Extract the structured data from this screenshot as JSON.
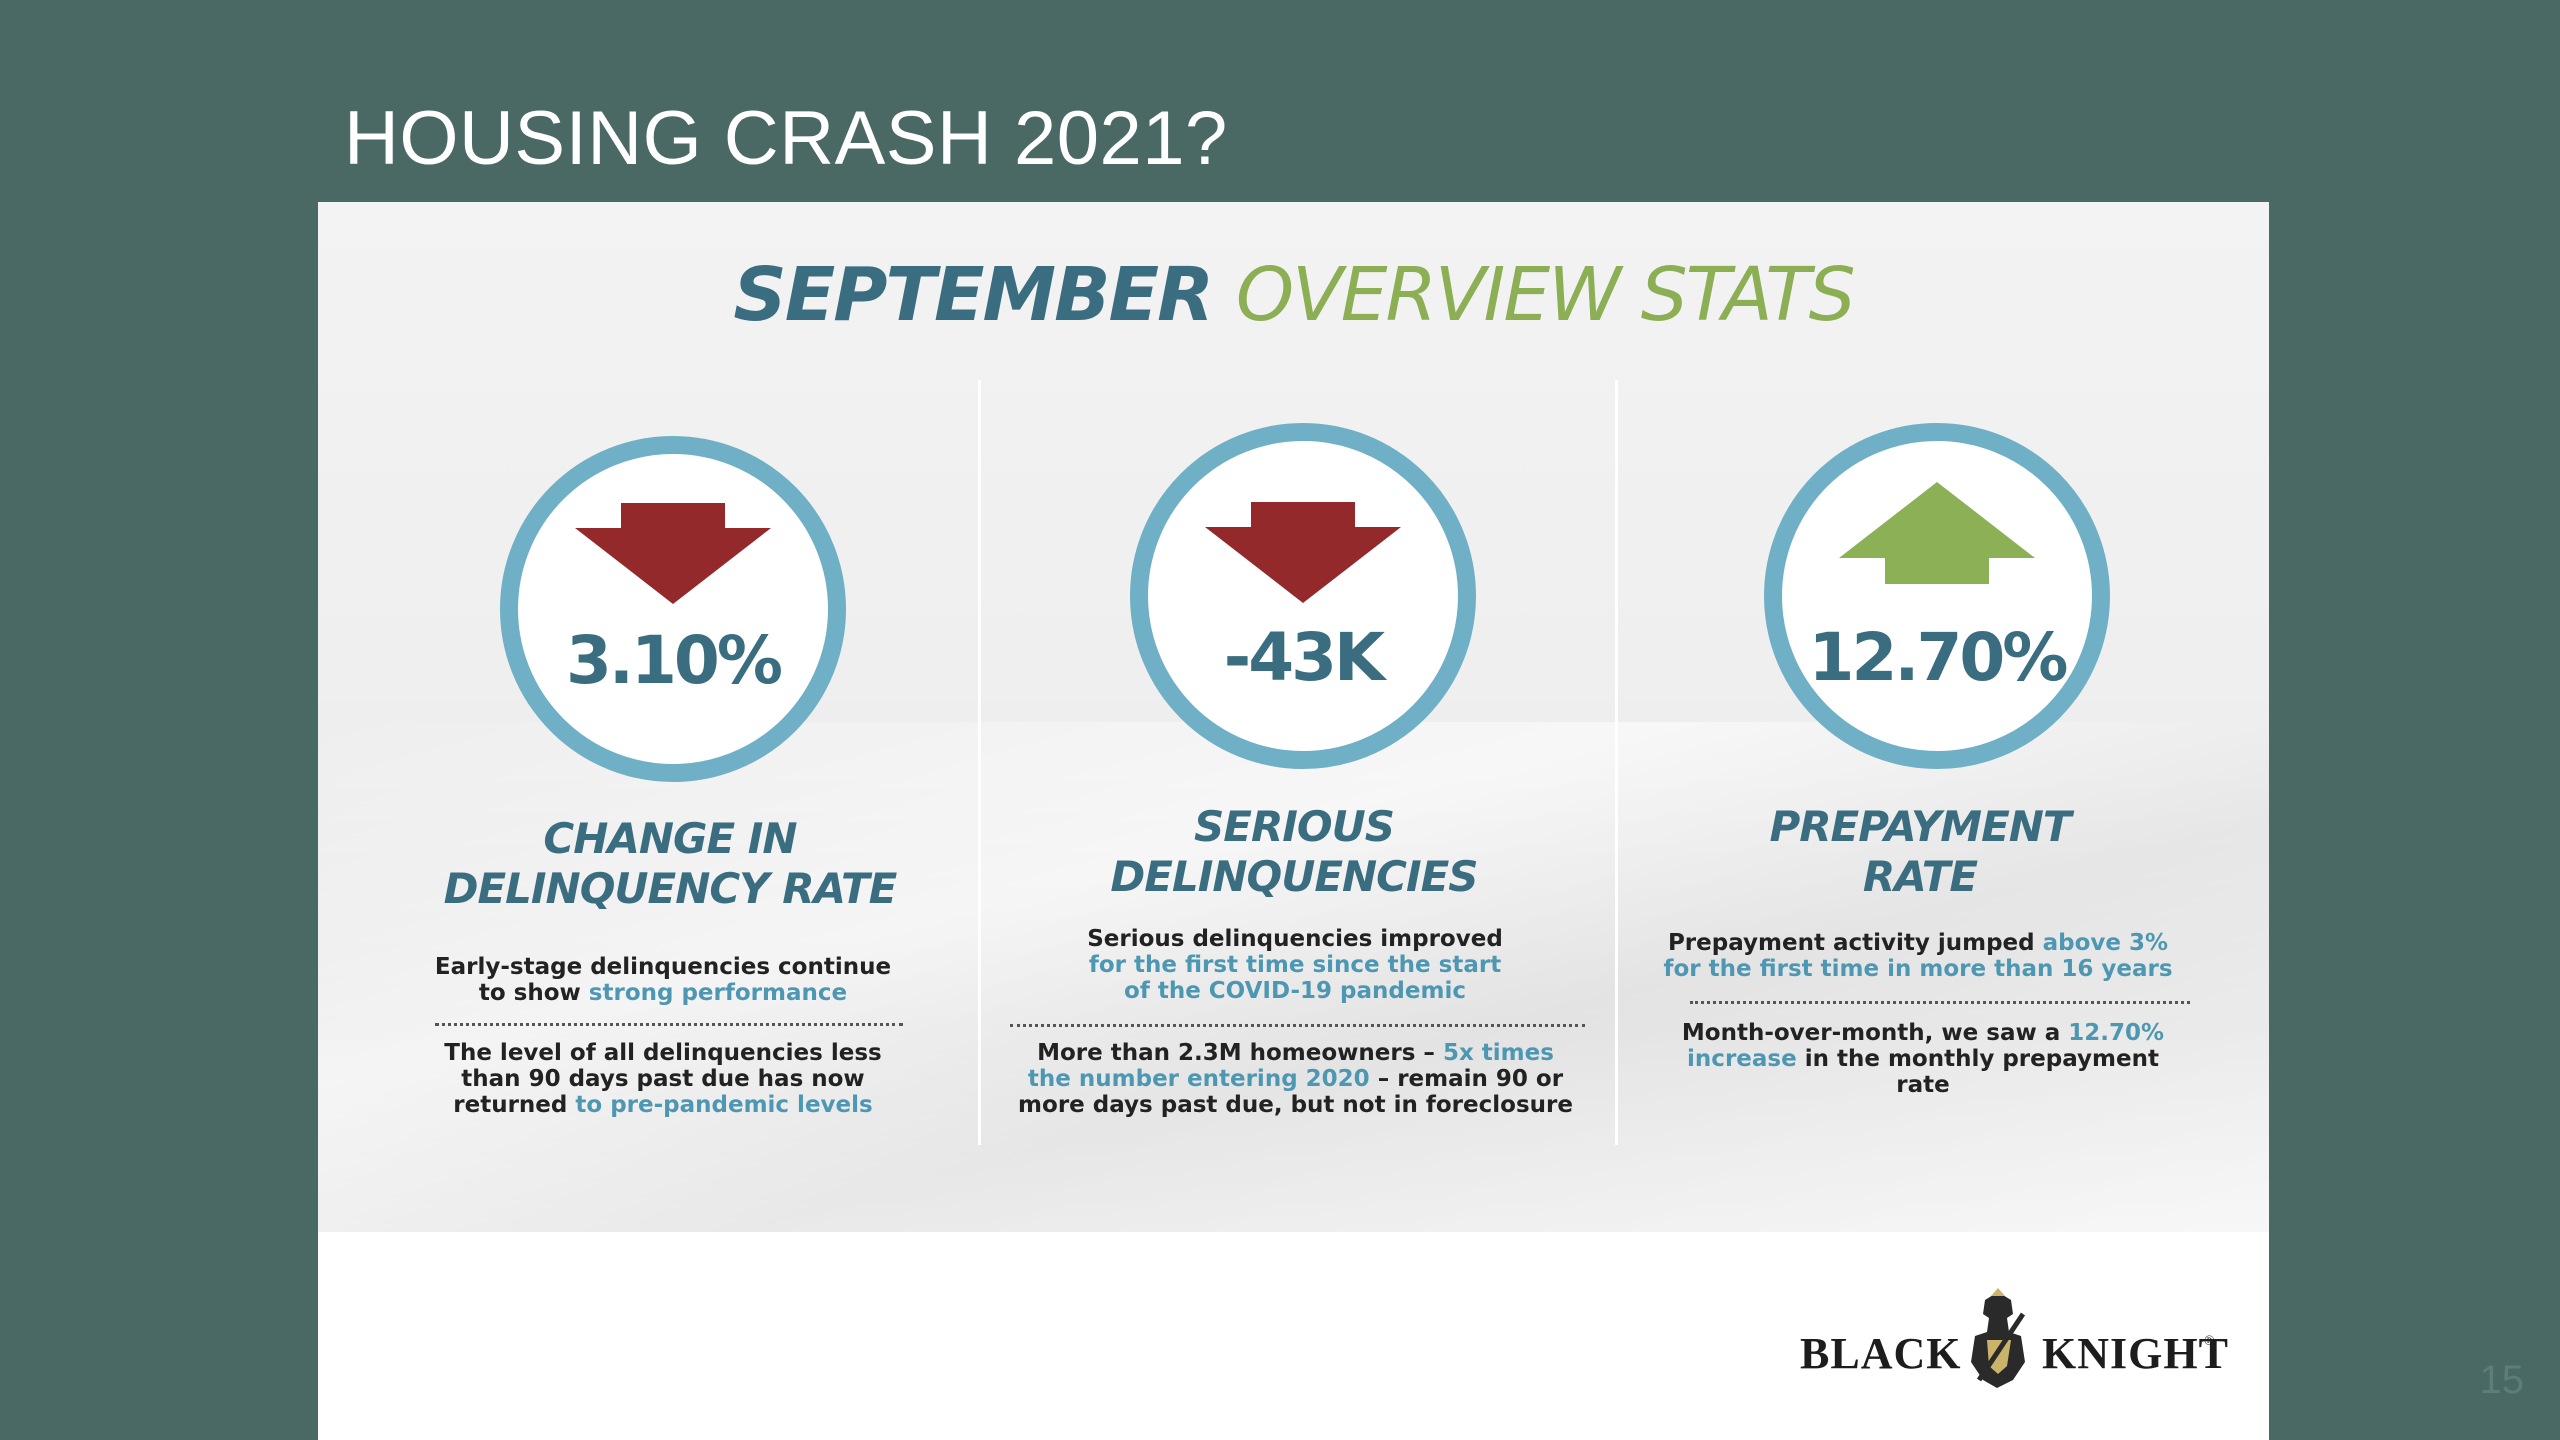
{
  "slide": {
    "title": "HOUSING CRASH 2021?",
    "page_number": "15"
  },
  "heading": {
    "part1": "SEPTEMBER",
    "part2": "OVERVIEW STATS"
  },
  "colors": {
    "background": "#4a6964",
    "teal": "#3b6d80",
    "green": "#8caf55",
    "circle_ring": "#6fb0c6",
    "arrow_down": "#93292b",
    "arrow_up": "#8cb055",
    "highlight": "#4e97b2"
  },
  "stats": [
    {
      "value": "3.10%",
      "arrow": "down-arrow-icon",
      "label_line1": "CHANGE IN",
      "label_line2": "DELINQUENCY RATE",
      "desc1": {
        "text1": "Early-stage delinquencies continue to show ",
        "hl1": "strong performance"
      },
      "desc2": {
        "text1": "The level of all delinquencies less than 90 days past due has now returned ",
        "hl1": "to pre-pandemic levels"
      }
    },
    {
      "value": "-43K",
      "arrow": "down-arrow-icon",
      "label_line1": "SERIOUS",
      "label_line2": "DELINQUENCIES",
      "desc1": {
        "text1": "Serious delinquencies improved ",
        "hl1": "for the first time since the start of the COVID-19 pandemic"
      },
      "desc2": {
        "text1": "More than 2.3M homeowners – ",
        "hl1": "5x times the number entering 2020",
        "text2": " – remain 90 or more days past due, but not in foreclosure"
      }
    },
    {
      "value": "12.70%",
      "arrow": "up-arrow-icon",
      "label_line1": "PREPAYMENT",
      "label_line2": "RATE",
      "desc1": {
        "text1": "Prepayment activity jumped ",
        "hl1": "above 3% for the first time in more than 16 years"
      },
      "desc2": {
        "text1": "Month-over-month, we saw a ",
        "hl1": "12.70% increase",
        "text2": " in the monthly prepayment rate"
      }
    }
  ],
  "logo": {
    "left_word": "BLACK",
    "right_word": "KNIGHT",
    "mark": "®"
  }
}
